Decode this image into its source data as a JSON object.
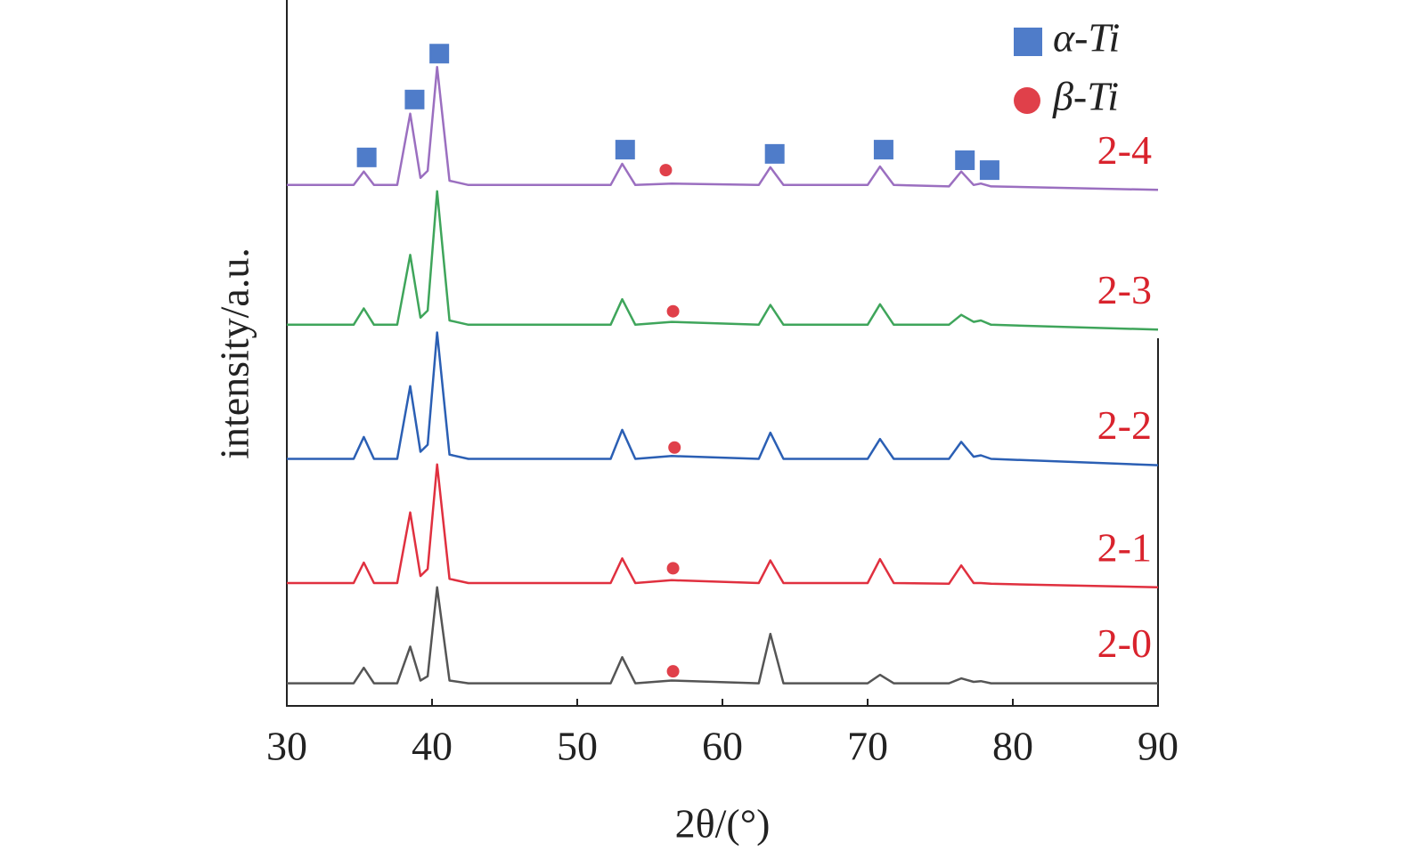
{
  "chart_data": {
    "type": "line",
    "xlabel": "2θ/(°)",
    "ylabel": "intensity/a.u.",
    "xlim": [
      30,
      90
    ],
    "xticks": [
      30,
      40,
      50,
      60,
      70,
      80,
      90
    ],
    "ylim": [
      0,
      100
    ],
    "x": [
      30,
      34.6,
      35.3,
      36,
      37.6,
      38.5,
      39.2,
      39.7,
      40.35,
      41.2,
      42.5,
      52.3,
      53.1,
      54,
      56.5,
      62.5,
      63.3,
      64.2,
      70,
      70.85,
      71.8,
      75.6,
      76.45,
      77.3,
      77.8,
      78.5,
      90
    ],
    "series": [
      {
        "name": "2-0",
        "color": "#555555",
        "values": [
          3.2,
          3.2,
          5.4,
          3.2,
          3.2,
          8.4,
          3.6,
          4.2,
          16.8,
          3.6,
          3.2,
          3.2,
          6.9,
          3.2,
          3.6,
          3.2,
          10.2,
          3.2,
          3.2,
          4.4,
          3.2,
          3.2,
          3.9,
          3.4,
          3.5,
          3.2,
          3.2
        ]
      },
      {
        "name": "2-1",
        "color": "#e0303f",
        "values": [
          17.4,
          17.4,
          20.3,
          17.4,
          17.4,
          27.4,
          18.4,
          19.4,
          34.2,
          18.0,
          17.4,
          17.4,
          20.9,
          17.4,
          17.8,
          17.4,
          20.6,
          17.4,
          17.4,
          20.8,
          17.4,
          17.3,
          19.9,
          17.4,
          17.4,
          17.3,
          16.8
        ]
      },
      {
        "name": "2-2",
        "color": "#2b5fb4",
        "values": [
          35,
          35,
          38.1,
          35,
          35,
          45.3,
          36,
          37,
          52.9,
          35.6,
          35,
          35,
          39.1,
          35,
          35.4,
          35,
          38.7,
          35,
          35,
          37.8,
          35,
          35,
          37.4,
          35.3,
          35.5,
          35,
          34.1
        ]
      },
      {
        "name": "2-3",
        "color": "#3fa55b",
        "values": [
          54,
          54,
          56.3,
          54,
          54,
          63.9,
          55,
          56,
          72.9,
          54.6,
          54,
          54,
          57.6,
          54,
          54.4,
          54,
          56.8,
          54,
          54,
          56.9,
          54,
          54,
          55.4,
          54.4,
          54.6,
          54,
          53.3
        ]
      },
      {
        "name": "2-4",
        "color": "#9b6fc0",
        "values": [
          73.8,
          73.8,
          75.7,
          73.8,
          73.8,
          83.9,
          74.8,
          75.8,
          90.5,
          74.4,
          73.8,
          73.8,
          76.8,
          73.8,
          74,
          73.8,
          76.3,
          73.8,
          73.8,
          76.4,
          73.8,
          73.6,
          75.7,
          73.8,
          74,
          73.6,
          73.1
        ]
      }
    ],
    "series_label_color": "#d9232d",
    "markers": [
      {
        "name": "α-Ti",
        "shape": "square",
        "color": "#4f7cc9",
        "x": [
          35.5,
          38.8,
          40.5,
          53.3,
          63.6,
          71.1,
          76.7,
          78.4
        ],
        "y": [
          77.7,
          85.9,
          92.4,
          78.8,
          78.2,
          78.8,
          77.3,
          75.9
        ]
      },
      {
        "name": "β-Ti",
        "shape": "circle",
        "color": "#e0404a",
        "x": [
          56.1,
          56.6,
          56.7,
          56.6,
          56.6
        ],
        "y": [
          75.9,
          55.9,
          36.6,
          19.5,
          4.9
        ]
      }
    ]
  }
}
